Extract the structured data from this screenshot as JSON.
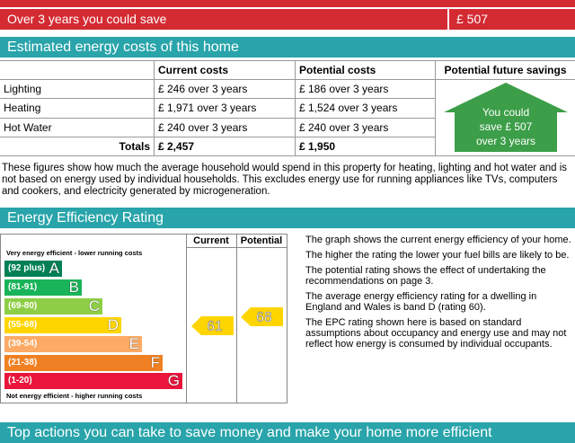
{
  "savings_banner": {
    "label": "Over 3 years you could save",
    "value": "£ 507"
  },
  "costs_section": {
    "title": "Estimated energy costs of this home",
    "table": {
      "headers": {
        "current": "Current costs",
        "potential": "Potential costs",
        "savings": "Potential future savings"
      },
      "rows": [
        [
          "Lighting",
          "£ 246 over 3 years",
          "£ 186 over 3 years"
        ],
        [
          "Heating",
          "£ 1,971 over 3 years",
          "£ 1,524 over 3 years"
        ],
        [
          "Hot Water",
          "£ 240 over 3 years",
          "£ 240 over 3 years"
        ]
      ],
      "totals": {
        "label": "Totals",
        "current": "£ 2,457",
        "potential": "£ 1,950"
      },
      "savings_badge": [
        "You could",
        "save £ 507",
        "over 3 years"
      ]
    },
    "note": "These figures show how much the average household would spend in this property for heating, lighting and hot water and is not based on energy used by individual households. This excludes energy use for running appliances like TVs, computers and cookers, and electricity generated by microgeneration."
  },
  "rating_section": {
    "title": "Energy Efficiency Rating",
    "chart": {
      "top_label": "Very energy efficient - lower running costs",
      "bottom_label": "Not energy efficient - higher running costs",
      "column_headers": [
        "Current",
        "Potential"
      ],
      "bands": [
        {
          "range": "(92 plus)",
          "letter": "A"
        },
        {
          "range": "(81-91)",
          "letter": "B"
        },
        {
          "range": "(69-80)",
          "letter": "C"
        },
        {
          "range": "(55-68)",
          "letter": "D"
        },
        {
          "range": "(39-54)",
          "letter": "E"
        },
        {
          "range": "(21-38)",
          "letter": "F"
        },
        {
          "range": "(1-20)",
          "letter": "G"
        }
      ],
      "current": "61",
      "potential": "68"
    },
    "paragraphs": [
      "The graph shows the current energy efficiency of your home.",
      "The higher the rating the lower your fuel bills are likely to be.",
      "The potential rating shows the effect of undertaking the recommendations on page 3.",
      "The average energy efficiency rating for a dwelling in England and Wales is band D (rating 60).",
      "The EPC rating shown here is based on standard assumptions about occupancy and energy use and may not reflect how energy is consumed by individual occupants."
    ]
  },
  "next_section": {
    "title": "Top actions you can take to save money and make your home more efficient"
  }
}
